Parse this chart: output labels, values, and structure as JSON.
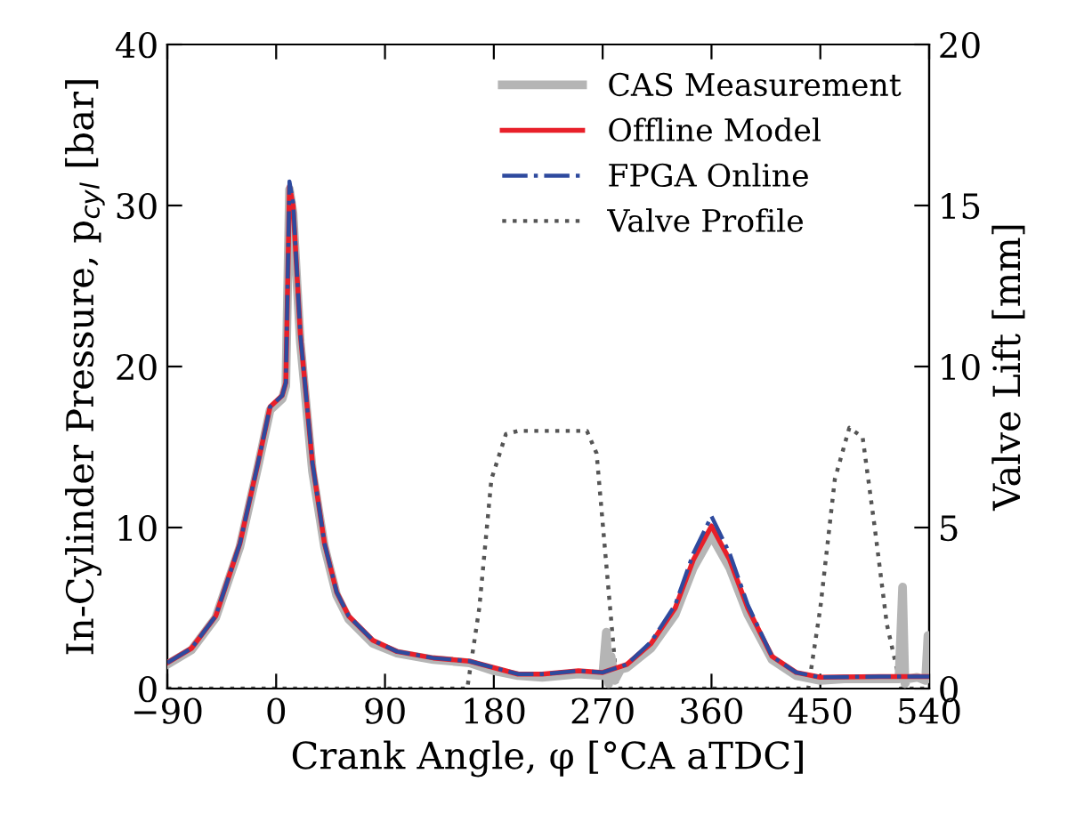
{
  "chart_data": {
    "type": "line",
    "xlabel": "Crank Angle, φ [°CA aTDC]",
    "ylabel": "In-Cylinder Pressure, p$_{cyl}$ [bar]",
    "y2label": "Valve Lift [mm]",
    "xlim": [
      -90,
      540
    ],
    "xticks": [
      -90,
      0,
      90,
      180,
      270,
      360,
      450,
      540
    ],
    "ylim": [
      0,
      40
    ],
    "yticks": [
      0,
      10,
      20,
      30,
      40
    ],
    "y2lim": [
      0,
      20
    ],
    "y2ticks": [
      0,
      5,
      10,
      15,
      20
    ],
    "legend": "top right",
    "grid": false,
    "series": [
      {
        "name": "CAS Measurement",
        "color": "#b5b5b5",
        "line_style": "solid",
        "x": [
          -90,
          -70,
          -50,
          -30,
          -15,
          -5,
          5,
          8,
          11,
          14,
          20,
          30,
          40,
          50,
          60,
          80,
          100,
          130,
          160,
          180,
          200,
          220,
          250,
          270,
          273,
          275,
          277,
          280,
          285,
          290,
          310,
          330,
          345,
          360,
          375,
          390,
          410,
          430,
          450,
          470,
          500,
          515,
          518,
          520,
          522,
          530,
          537,
          539,
          540
        ],
        "values": [
          1.5,
          2.4,
          4.4,
          8.8,
          13.8,
          17.3,
          18.0,
          18.8,
          31.0,
          29.5,
          21.5,
          13.5,
          8.8,
          5.8,
          4.3,
          2.8,
          2.2,
          1.8,
          1.6,
          1.1,
          0.8,
          0.7,
          0.9,
          0.8,
          3.5,
          0.3,
          2.0,
          0.5,
          1.2,
          1.3,
          2.5,
          4.6,
          7.5,
          9.5,
          7.5,
          4.6,
          1.8,
          0.8,
          0.5,
          0.6,
          0.6,
          0.6,
          6.3,
          0.3,
          0.6,
          0.7,
          0.5,
          3.3,
          0.8
        ]
      },
      {
        "name": "Offline Model",
        "color": "#e8202a",
        "line_style": "solid",
        "x": [
          -90,
          -70,
          -50,
          -30,
          -15,
          -5,
          5,
          8,
          11,
          14,
          20,
          30,
          40,
          50,
          60,
          80,
          100,
          130,
          160,
          180,
          200,
          220,
          250,
          270,
          290,
          310,
          330,
          345,
          360,
          375,
          390,
          410,
          430,
          450,
          500,
          540
        ],
        "values": [
          1.6,
          2.5,
          4.5,
          9.0,
          14.0,
          17.5,
          18.2,
          19.0,
          31.2,
          30.0,
          22.0,
          14.0,
          9.0,
          6.0,
          4.5,
          3.0,
          2.3,
          1.9,
          1.7,
          1.3,
          0.9,
          0.9,
          1.1,
          1.0,
          1.5,
          2.8,
          5.0,
          8.0,
          10.1,
          8.0,
          5.0,
          2.0,
          1.0,
          0.7,
          0.75,
          0.75
        ]
      },
      {
        "name": "FPGA Online",
        "color": "#2e4a9e",
        "line_style": "dashdot",
        "x": [
          -90,
          -70,
          -50,
          -30,
          -15,
          -5,
          5,
          8,
          11,
          14,
          20,
          30,
          40,
          50,
          60,
          80,
          100,
          130,
          160,
          180,
          200,
          220,
          250,
          270,
          290,
          310,
          330,
          345,
          360,
          375,
          390,
          410,
          430,
          450,
          500,
          540
        ],
        "values": [
          1.6,
          2.5,
          4.5,
          9.0,
          14.0,
          17.5,
          18.2,
          19.0,
          31.5,
          30.2,
          22.0,
          14.0,
          9.0,
          6.0,
          4.5,
          3.0,
          2.3,
          1.9,
          1.7,
          1.3,
          0.9,
          0.9,
          1.1,
          1.0,
          1.5,
          2.9,
          5.2,
          8.4,
          10.7,
          8.4,
          5.2,
          2.0,
          1.0,
          0.7,
          0.75,
          0.75
        ]
      },
      {
        "name": "Valve Profile",
        "color": "#555555",
        "line_style": "dotted",
        "axis": "y2",
        "x": [
          -90,
          158,
          168,
          178,
          190,
          200,
          257,
          265,
          275,
          282,
          440,
          450,
          462,
          474,
          485,
          495,
          505,
          517,
          540
        ],
        "values": [
          0,
          0,
          2.5,
          6.5,
          7.9,
          8.0,
          8.0,
          7.3,
          3.0,
          0,
          0,
          2.5,
          6.5,
          8.1,
          7.8,
          5.0,
          2.0,
          0,
          0
        ]
      }
    ]
  }
}
